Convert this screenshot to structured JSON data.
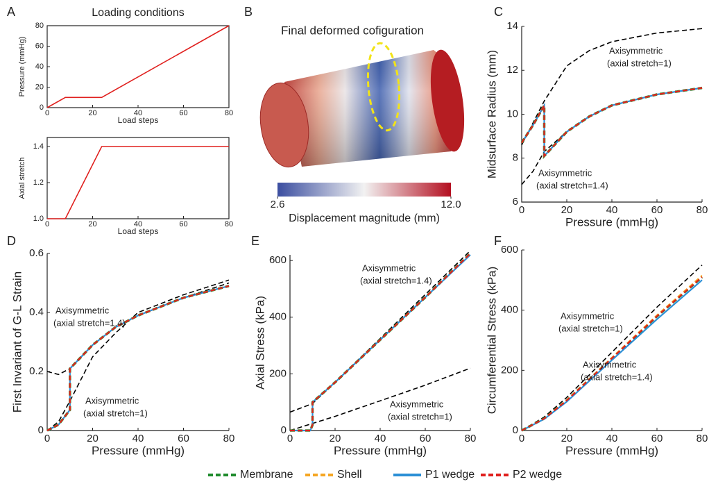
{
  "legend": [
    {
      "name": "Membrane",
      "color": "#1f8b2c",
      "style": "dashed"
    },
    {
      "name": "Shell",
      "color": "#f5a623",
      "style": "dashed"
    },
    {
      "name": "P1 wedge",
      "color": "#2b8fd6",
      "style": "solid"
    },
    {
      "name": "P2 wedge",
      "color": "#e0201e",
      "style": "dashed"
    }
  ],
  "chart_data": [
    {
      "type": "line",
      "panel": "A",
      "title": "Loading conditions",
      "ylabel": "Pressure (mmHg)",
      "xlabel": "Load steps",
      "frame": true,
      "xlim": [
        0,
        80
      ],
      "xticks": [
        0,
        20,
        40,
        60,
        80
      ],
      "ylim": [
        0,
        80
      ],
      "yticks": [
        0,
        20,
        40,
        60,
        80
      ],
      "series": [
        {
          "color": "#e0201e",
          "style": "solid",
          "x": [
            0,
            8,
            24,
            80
          ],
          "values": [
            0,
            10,
            10,
            80
          ]
        }
      ]
    },
    {
      "type": "line",
      "ylabel": "Axial stretch",
      "xlabel": "Load steps",
      "frame": true,
      "xlim": [
        0,
        80
      ],
      "xticks": [
        0,
        20,
        40,
        60,
        80
      ],
      "ylim": [
        1,
        1.45
      ],
      "yticks": [
        {
          "value": 1,
          "label": "1.0"
        },
        1.2,
        1.4
      ],
      "series": [
        {
          "color": "#e0201e",
          "style": "solid",
          "x": [
            0,
            8,
            24,
            80
          ],
          "values": [
            1,
            1,
            1.4,
            1.4
          ]
        }
      ]
    },
    {
      "type": "colormap",
      "panel": "B",
      "title": "Final deformed cofiguration",
      "colorbar_label": "Displacement magnitude (mm)",
      "clim": [
        2.6,
        12
      ],
      "cticks": [
        2.6,
        {
          "value": 12,
          "label": "12.0"
        }
      ],
      "colors": [
        "#3b4ea0",
        "#f2f2f2",
        "#b40f20"
      ]
    },
    {
      "type": "line",
      "panel": "C",
      "ylabel": "Midsurface Radius (mm)",
      "xlabel": "Pressure (mmHg)",
      "xlim": [
        0,
        80
      ],
      "xticks": [
        0,
        20,
        40,
        60,
        80
      ],
      "ylim": [
        6,
        14
      ],
      "yticks": [
        6,
        8,
        10,
        12,
        14
      ],
      "annotations": [
        [
          "Axisymmetric",
          "(axial stretch=1)"
        ],
        [
          "Axisymmetric",
          "(axial stretch=1.4)"
        ]
      ],
      "series": [
        {
          "color": "#000000",
          "style": "dashed",
          "x": [
            0,
            10,
            20,
            30,
            40,
            60,
            80
          ],
          "values": [
            8.6,
            10.6,
            12.2,
            12.9,
            13.3,
            13.7,
            13.9
          ]
        },
        {
          "color": "#000000",
          "style": "dashed",
          "x": [
            0,
            5,
            10,
            20,
            30,
            40,
            60,
            80
          ],
          "values": [
            6.8,
            7.4,
            8.3,
            9.2,
            9.9,
            10.4,
            10.9,
            11.2
          ]
        },
        {
          "legend": 0,
          "x": [
            0,
            5,
            10,
            10,
            20,
            30,
            40,
            60,
            80
          ],
          "values": [
            8.7,
            9.5,
            10.4,
            8.1,
            9.2,
            9.9,
            10.4,
            10.9,
            11.2
          ]
        },
        {
          "legend": 2,
          "x": [
            0,
            5,
            10,
            10,
            20,
            30,
            40,
            60,
            80
          ],
          "values": [
            8.7,
            9.5,
            10.4,
            8.1,
            9.2,
            9.9,
            10.4,
            10.9,
            11.2
          ]
        },
        {
          "legend": 1,
          "x": [
            0,
            5,
            10,
            10,
            20,
            30,
            40,
            60,
            80
          ],
          "values": [
            8.7,
            9.5,
            10.4,
            8.1,
            9.2,
            9.9,
            10.4,
            10.9,
            11.2
          ]
        },
        {
          "legend": 3,
          "x": [
            0,
            5,
            10,
            10,
            20,
            30,
            40,
            60,
            80
          ],
          "values": [
            8.7,
            9.5,
            10.4,
            8.1,
            9.2,
            9.9,
            10.4,
            10.9,
            11.2
          ]
        }
      ]
    },
    {
      "type": "line",
      "panel": "D",
      "ylabel": "First Invariant of G-L Strain",
      "xlabel": "Pressure (mmHg)",
      "xlim": [
        0,
        80
      ],
      "xticks": [
        0,
        20,
        40,
        60,
        80
      ],
      "ylim": [
        0,
        0.6
      ],
      "yticks": [
        0,
        0.2,
        0.4,
        0.6
      ],
      "annotations": [
        [
          "Axisymmetric",
          "(axial stretch=1.4)"
        ],
        [
          "Axisymmetric",
          "(axial stretch=1)"
        ]
      ],
      "series": [
        {
          "color": "#000000",
          "style": "dashed",
          "x": [
            0,
            5,
            10,
            20,
            30,
            40,
            60,
            80
          ],
          "values": [
            0.2,
            0.19,
            0.21,
            0.29,
            0.35,
            0.39,
            0.45,
            0.5
          ]
        },
        {
          "color": "#000000",
          "style": "dashed",
          "x": [
            0,
            5,
            10,
            20,
            30,
            40,
            60,
            80
          ],
          "values": [
            0,
            0.03,
            0.1,
            0.25,
            0.33,
            0.4,
            0.46,
            0.51
          ]
        },
        {
          "legend": 0,
          "x": [
            0,
            5,
            10,
            10,
            20,
            30,
            40,
            60,
            80
          ],
          "values": [
            0,
            0.02,
            0.07,
            0.21,
            0.29,
            0.35,
            0.39,
            0.45,
            0.49
          ]
        },
        {
          "legend": 2,
          "x": [
            0,
            5,
            10,
            10,
            20,
            30,
            40,
            60,
            80
          ],
          "values": [
            0,
            0.02,
            0.07,
            0.21,
            0.29,
            0.35,
            0.39,
            0.45,
            0.49
          ]
        },
        {
          "legend": 1,
          "x": [
            0,
            5,
            10,
            10,
            20,
            30,
            40,
            60,
            80
          ],
          "values": [
            0,
            0.02,
            0.07,
            0.21,
            0.29,
            0.35,
            0.39,
            0.45,
            0.49
          ]
        },
        {
          "legend": 3,
          "x": [
            0,
            5,
            10,
            10,
            20,
            30,
            40,
            60,
            80
          ],
          "values": [
            0,
            0.02,
            0.07,
            0.21,
            0.29,
            0.35,
            0.39,
            0.45,
            0.49
          ]
        }
      ]
    },
    {
      "type": "line",
      "panel": "E",
      "ylabel": "Axial Stress (kPa)",
      "xlabel": "Pressure (mmHg)",
      "xlim": [
        0,
        80
      ],
      "xticks": [
        0,
        20,
        40,
        60,
        80
      ],
      "ylim": [
        0,
        620
      ],
      "yticks": [
        0,
        200,
        400,
        600
      ],
      "annotations": [
        [
          "Axisymmetric",
          "(axial stretch=1.4)"
        ],
        [
          "Axisymmetric",
          "(axial stretch=1)"
        ]
      ],
      "series": [
        {
          "color": "#000000",
          "style": "dashed",
          "x": [
            0,
            10,
            20,
            40,
            60,
            80
          ],
          "values": [
            65,
            95,
            170,
            325,
            480,
            635
          ]
        },
        {
          "color": "#000000",
          "style": "dashed",
          "x": [
            0,
            20,
            40,
            60,
            80
          ],
          "values": [
            0,
            50,
            105,
            160,
            220
          ]
        },
        {
          "legend": 0,
          "x": [
            0,
            9,
            10,
            10,
            20,
            40,
            60,
            80
          ],
          "values": [
            0,
            0,
            20,
            100,
            170,
            320,
            470,
            625
          ]
        },
        {
          "legend": 2,
          "x": [
            0,
            9,
            10,
            10,
            20,
            40,
            60,
            80
          ],
          "values": [
            0,
            0,
            20,
            100,
            170,
            320,
            470,
            620
          ]
        },
        {
          "legend": 1,
          "x": [
            0,
            9,
            10,
            10,
            20,
            40,
            60,
            80
          ],
          "values": [
            0,
            0,
            20,
            100,
            170,
            320,
            470,
            625
          ]
        },
        {
          "legend": 3,
          "x": [
            0,
            9,
            10,
            10,
            20,
            40,
            60,
            80
          ],
          "values": [
            0,
            0,
            20,
            100,
            170,
            320,
            470,
            625
          ]
        }
      ]
    },
    {
      "type": "line",
      "panel": "F",
      "ylabel": "Circumferential Stress (kPa)",
      "xlabel": "Pressure (mmHg)",
      "xlim": [
        0,
        80
      ],
      "xticks": [
        0,
        20,
        40,
        60,
        80
      ],
      "ylim": [
        0,
        600
      ],
      "yticks": [
        0,
        200,
        400,
        600
      ],
      "annotations": [
        [
          "Axisymmetric",
          "(axial stretch=1)"
        ],
        [
          "Axisymmetric",
          "(axial stretch=1.4)"
        ]
      ],
      "series": [
        {
          "color": "#000000",
          "style": "dashed",
          "x": [
            0,
            10,
            20,
            40,
            60,
            80
          ],
          "values": [
            0,
            45,
            110,
            260,
            410,
            550
          ]
        },
        {
          "legend": 0,
          "x": [
            0,
            10,
            20,
            40,
            60,
            80
          ],
          "values": [
            0,
            40,
            100,
            240,
            380,
            510
          ]
        },
        {
          "legend": 2,
          "x": [
            0,
            10,
            20,
            40,
            60,
            80
          ],
          "values": [
            0,
            38,
            96,
            234,
            370,
            500
          ]
        },
        {
          "legend": 1,
          "x": [
            0,
            10,
            20,
            40,
            60,
            80
          ],
          "values": [
            0,
            40,
            101,
            242,
            383,
            515
          ]
        },
        {
          "legend": 3,
          "x": [
            0,
            10,
            20,
            40,
            60,
            80
          ],
          "values": [
            0,
            40,
            100,
            240,
            380,
            510
          ]
        }
      ]
    }
  ]
}
